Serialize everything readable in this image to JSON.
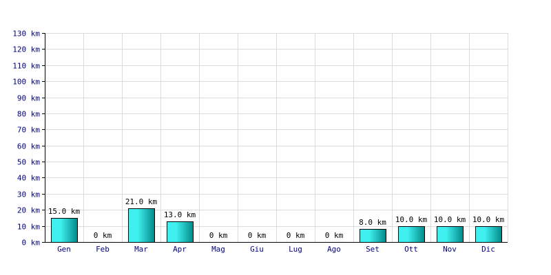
{
  "chart_data": {
    "type": "bar",
    "categories": [
      "Gen",
      "Feb",
      "Mar",
      "Apr",
      "Mag",
      "Giu",
      "Lug",
      "Ago",
      "Set",
      "Ott",
      "Nov",
      "Dic"
    ],
    "values": [
      15.0,
      0,
      21.0,
      13.0,
      0,
      0,
      0,
      0,
      8.0,
      10.0,
      10.0,
      10.0
    ],
    "data_labels": [
      "15.0 km",
      "0 km",
      "21.0 km",
      "13.0 km",
      "0 km",
      "0 km",
      "0 km",
      "0 km",
      "8.0 km",
      "10.0 km",
      "10.0 km",
      "10.0 km"
    ],
    "y_ticks": [
      0,
      10,
      20,
      30,
      40,
      50,
      60,
      70,
      80,
      90,
      100,
      110,
      120,
      130
    ],
    "y_tick_labels": [
      "0 km",
      "10 km",
      "20 km",
      "30 km",
      "40 km",
      "50 km",
      "60 km",
      "70 km",
      "80 km",
      "90 km",
      "100 km",
      "110 km",
      "120 km",
      "130 km"
    ],
    "ylim": [
      0,
      130
    ],
    "grid": true,
    "title": "",
    "xlabel": "",
    "ylabel": "",
    "colors": {
      "bar_light": "#40f0f0",
      "bar_dark": "#008a8a",
      "grid": "#dcdcdc",
      "tick_label": "#000080",
      "data_label": "#000000"
    }
  }
}
